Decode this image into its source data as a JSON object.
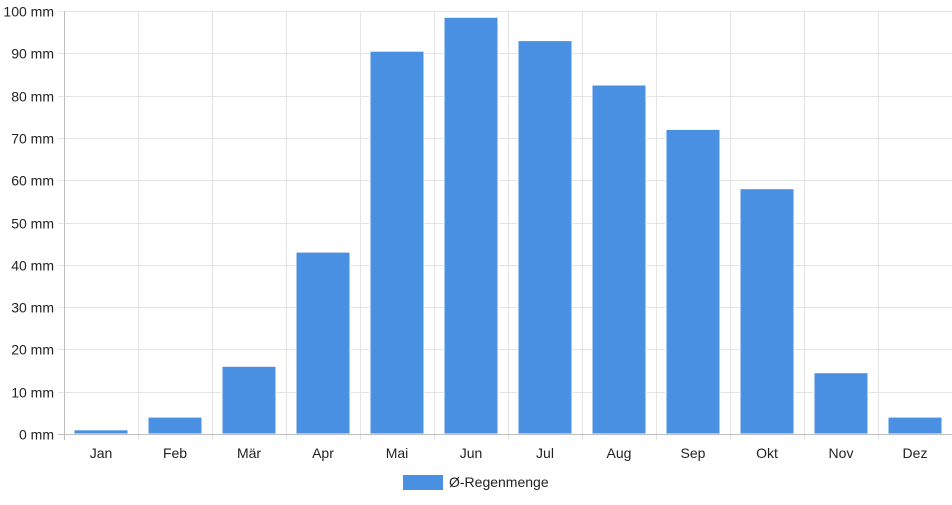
{
  "chart_data": {
    "type": "bar",
    "categories": [
      "Jan",
      "Feb",
      "Mär",
      "Apr",
      "Mai",
      "Jun",
      "Jul",
      "Aug",
      "Sep",
      "Okt",
      "Nov",
      "Dez"
    ],
    "series": [
      {
        "name": "Ø-Regenmenge",
        "color": "#4a90e2",
        "values": [
          1,
          4,
          16,
          43,
          90.5,
          98.5,
          93,
          82.5,
          72,
          58,
          14.5,
          4
        ]
      }
    ],
    "y_unit": "mm",
    "ylim": [
      0,
      100
    ],
    "y_ticks": [
      0,
      10,
      20,
      30,
      40,
      50,
      60,
      70,
      80,
      90,
      100
    ],
    "y_tick_labels": [
      "0 mm",
      "10 mm",
      "20 mm",
      "30 mm",
      "40 mm",
      "50 mm",
      "60 mm",
      "70 mm",
      "80 mm",
      "90 mm",
      "100 mm"
    ],
    "grid": true,
    "legend_position": "bottom-center"
  }
}
